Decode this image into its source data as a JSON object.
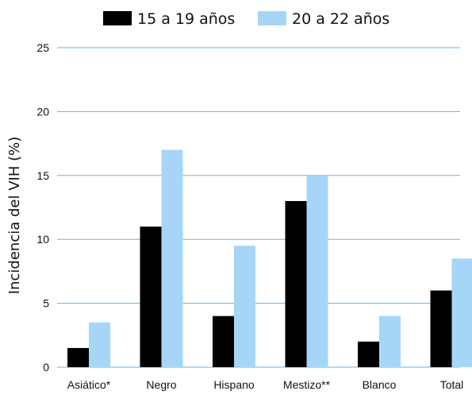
{
  "chart_data": {
    "type": "bar",
    "title": "",
    "xlabel": "",
    "ylabel": "Incidencia del VIH (%)",
    "ylim": [
      0,
      25
    ],
    "yticks": [
      0,
      5,
      10,
      15,
      20,
      25
    ],
    "grid": true,
    "legend_position": "top",
    "categories": [
      "Asiático*",
      "Negro",
      "Hispano",
      "Mestizo**",
      "Blanco",
      "Total"
    ],
    "series": [
      {
        "name": "15 a 19 años",
        "color": "#000000",
        "values": [
          1.5,
          11,
          4,
          13,
          2,
          6
        ]
      },
      {
        "name": "20 a 22 años",
        "color": "#a6d5f7",
        "values": [
          3.5,
          17,
          9.5,
          15,
          4,
          8.5
        ]
      }
    ],
    "gridline_color": "#5bb8e8",
    "axis_color": "#5bb8e8"
  }
}
